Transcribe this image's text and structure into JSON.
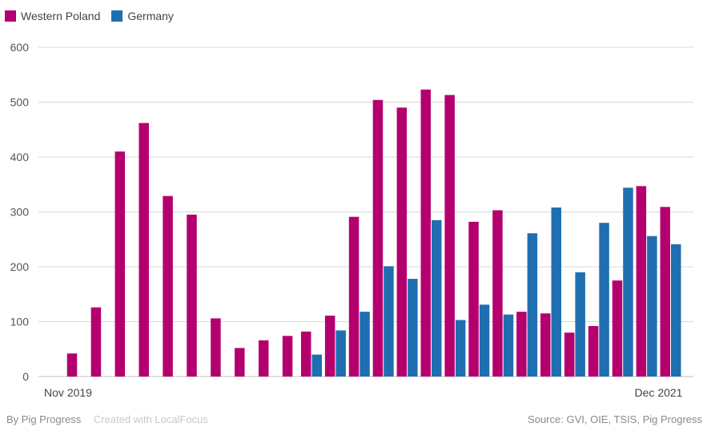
{
  "chart_data": {
    "type": "bar",
    "title": "",
    "xlabel": "",
    "ylabel": "",
    "ylim": [
      0,
      600
    ],
    "yticks": [
      0,
      100,
      200,
      300,
      400,
      500,
      600
    ],
    "grid": true,
    "legend_position": "top-left",
    "x_axis_labels": {
      "first": "Nov 2019",
      "last": "Dec 2021"
    },
    "categories": [
      "Nov 2019",
      "Dec 2019",
      "Jan 2020",
      "Feb 2020",
      "Mar 2020",
      "Apr 2020",
      "May 2020",
      "Jun 2020",
      "Jul 2020",
      "Aug 2020",
      "Sep 2020",
      "Oct 2020",
      "Nov 2020",
      "Dec 2020",
      "Jan 2021",
      "Feb 2021",
      "Mar 2021",
      "Apr 2021",
      "May 2021",
      "Jun 2021",
      "Jul 2021",
      "Aug 2021",
      "Sep 2021",
      "Oct 2021",
      "Nov 2021",
      "Dec 2021"
    ],
    "series": [
      {
        "name": "Western Poland",
        "color": "#b4006e",
        "values": [
          42,
          126,
          410,
          462,
          329,
          295,
          106,
          52,
          66,
          74,
          82,
          111,
          291,
          504,
          490,
          523,
          513,
          282,
          303,
          118,
          115,
          80,
          92,
          175,
          347,
          309
        ]
      },
      {
        "name": "Germany",
        "color": "#1f6fb0",
        "values": [
          null,
          null,
          null,
          null,
          null,
          null,
          null,
          null,
          null,
          null,
          40,
          84,
          118,
          201,
          178,
          285,
          103,
          131,
          113,
          261,
          308,
          190,
          280,
          344,
          256,
          241
        ]
      }
    ]
  },
  "footer": {
    "by": "By Pig Progress",
    "created": "Created with LocalFocus",
    "source": "Source:  GVI, OIE, TSIS, Pig Progress"
  }
}
